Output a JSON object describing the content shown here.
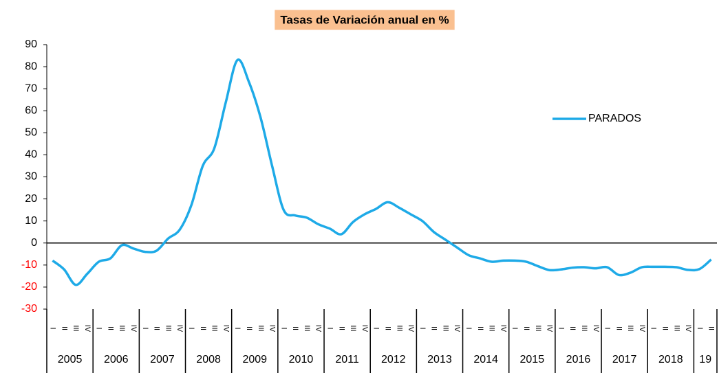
{
  "chart_data": {
    "type": "line",
    "title": "Tasas de Variación anual en %",
    "title_background": "#fac090",
    "categories": [
      "I",
      "II",
      "III",
      "IV",
      "I",
      "II",
      "III",
      "IV",
      "I",
      "II",
      "III",
      "IV",
      "I",
      "II",
      "III",
      "IV",
      "I",
      "II",
      "III",
      "IV",
      "I",
      "II",
      "III",
      "IV",
      "I",
      "II",
      "III",
      "IV",
      "I",
      "II",
      "III",
      "IV",
      "I",
      "II",
      "III",
      "IV",
      "I",
      "II",
      "III",
      "IV",
      "I",
      "II",
      "III",
      "IV",
      "I",
      "II",
      "III",
      "IV",
      "I",
      "II",
      "III",
      "IV",
      "I",
      "II",
      "III",
      "IV",
      "I",
      "II"
    ],
    "year_labels": [
      "2005",
      "2006",
      "2007",
      "2008",
      "2009",
      "2010",
      "2011",
      "2012",
      "2013",
      "2014",
      "2015",
      "2016",
      "2017",
      "2018",
      "19"
    ],
    "series": [
      {
        "name": "PARADOS",
        "color": "#1eaae7",
        "values": [
          -8,
          -12,
          -19,
          -14,
          -8.5,
          -7,
          -1,
          -2.5,
          -4,
          -3.5,
          2,
          6,
          17,
          35,
          43,
          64,
          83,
          73,
          57,
          35,
          15,
          12.5,
          11.5,
          8.5,
          6.5,
          4,
          9.5,
          13,
          15.5,
          18.5,
          16,
          13,
          10,
          5,
          1.5,
          -2,
          -5.5,
          -7,
          -8.5,
          -8,
          -8,
          -8.5,
          -10.5,
          -12.3,
          -12,
          -11.2,
          -11,
          -11.5,
          -11,
          -14.5,
          -13.5,
          -11,
          -10.8,
          -10.8,
          -11,
          -12.2,
          -11.8,
          -7.5
        ]
      }
    ],
    "ylim": [
      -30,
      90
    ],
    "yticks": [
      -30,
      -20,
      -10,
      0,
      10,
      20,
      30,
      40,
      50,
      60,
      70,
      80,
      90
    ],
    "negative_tick_color": "#ff0000",
    "legend": "right"
  }
}
